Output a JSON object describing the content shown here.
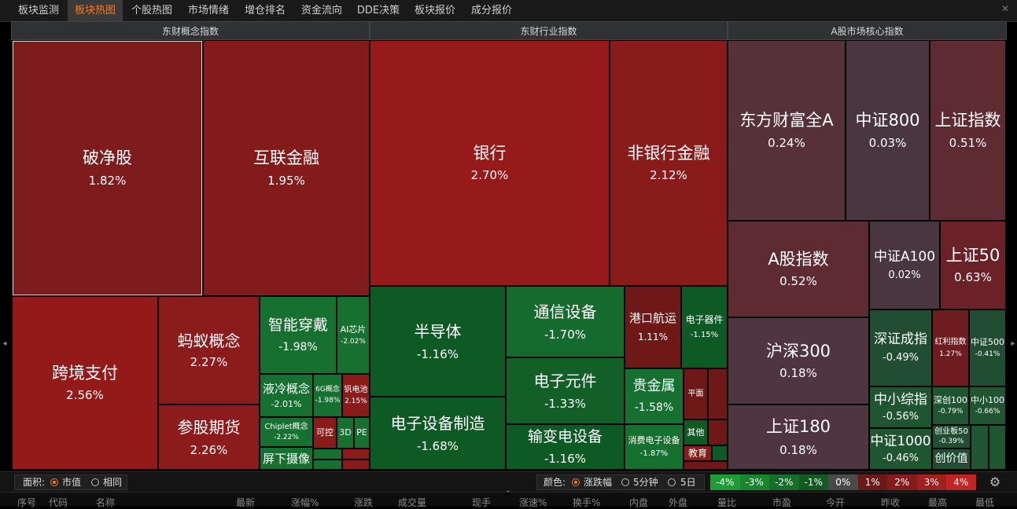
{
  "tabs": [
    "板块监测",
    "板块热图",
    "个股热图",
    "市场情绪",
    "增仓排名",
    "资金流向",
    "DDE决策",
    "板块报价",
    "成分报价"
  ],
  "active_tab": 1,
  "sections": {
    "concept": "东财概念指数",
    "industry": "东财行业指数",
    "core": "A股市场核心指数"
  },
  "colors": {
    "up_strong": "#8a1c1c",
    "down_strong": "#0c5a25",
    "neutral": "#4a3440",
    "accent": "#ff7a1a"
  },
  "cells": [
    {
      "name": "破净股",
      "pct": "1.82%"
    },
    {
      "name": "互联金融",
      "pct": "1.95%"
    },
    {
      "name": "跨境支付",
      "pct": "2.56%"
    },
    {
      "name": "蚂蚁概念",
      "pct": "2.27%"
    },
    {
      "name": "参股期货",
      "pct": "2.26%"
    },
    {
      "name": "智能穿戴",
      "pct": "-1.98%"
    },
    {
      "name": "AI芯片",
      "pct": "-2.02%"
    },
    {
      "name": "液冷概念",
      "pct": "-2.01%"
    },
    {
      "name": "6G概念",
      "pct": "-1.98%"
    },
    {
      "name": "钒电池",
      "pct": "2.15%"
    },
    {
      "name": "Chiplet概念",
      "pct": "-2.22%"
    },
    {
      "name": "可控",
      "pct": ""
    },
    {
      "name": "3D",
      "pct": ""
    },
    {
      "name": "PE",
      "pct": ""
    },
    {
      "name": "屏下摄像",
      "pct": ""
    },
    {
      "name": "银行",
      "pct": "2.70%"
    },
    {
      "name": "非银行金融",
      "pct": "2.12%"
    },
    {
      "name": "半导体",
      "pct": "-1.16%"
    },
    {
      "name": "通信设备",
      "pct": "-1.70%"
    },
    {
      "name": "港口航运",
      "pct": "1.11%"
    },
    {
      "name": "电子器件",
      "pct": "-1.15%"
    },
    {
      "name": "电子元件",
      "pct": "-1.33%"
    },
    {
      "name": "贵金属",
      "pct": "-1.58%"
    },
    {
      "name": "平面",
      "pct": ""
    },
    {
      "name": "电子设备制造",
      "pct": "-1.68%"
    },
    {
      "name": "输变电设备",
      "pct": "-1.16%"
    },
    {
      "name": "消费电子设备",
      "pct": "-1.87%"
    },
    {
      "name": "其他",
      "pct": ""
    },
    {
      "name": "教育",
      "pct": ""
    },
    {
      "name": "东方财富全A",
      "pct": "0.24%"
    },
    {
      "name": "中证800",
      "pct": "0.03%"
    },
    {
      "name": "上证指数",
      "pct": "0.51%"
    },
    {
      "name": "A股指数",
      "pct": "0.52%"
    },
    {
      "name": "中证A100",
      "pct": "0.02%"
    },
    {
      "name": "上证50",
      "pct": "0.63%"
    },
    {
      "name": "沪深300",
      "pct": "0.18%"
    },
    {
      "name": "深证成指",
      "pct": "-0.49%"
    },
    {
      "name": "红利指数",
      "pct": "1.27%"
    },
    {
      "name": "中证500",
      "pct": "-0.41%"
    },
    {
      "name": "上证180",
      "pct": "0.18%"
    },
    {
      "name": "中小综指",
      "pct": "-0.56%"
    },
    {
      "name": "深创100",
      "pct": "-0.79%"
    },
    {
      "name": "中小100",
      "pct": "-0.66%"
    },
    {
      "name": "中证1000",
      "pct": "-0.46%"
    },
    {
      "name": "创业板50",
      "pct": "-0.39%"
    },
    {
      "name": "创价值",
      "pct": ""
    }
  ],
  "bottom": {
    "area_label": "面积:",
    "area_options": [
      "市值",
      "相同"
    ],
    "area_selected": 0,
    "color_label": "颜色:",
    "color_options": [
      "涨跌幅",
      "5分钟",
      "5日"
    ],
    "color_selected": 0,
    "legend": [
      {
        "label": "-4%",
        "color": "#1e9a37"
      },
      {
        "label": "-3%",
        "color": "#1a852f"
      },
      {
        "label": "-2%",
        "color": "#166f28"
      },
      {
        "label": "-1%",
        "color": "#125a21"
      },
      {
        "label": "0%",
        "color": "#4a4a4a"
      },
      {
        "label": "1%",
        "color": "#6b1818"
      },
      {
        "label": "2%",
        "color": "#851c1c"
      },
      {
        "label": "3%",
        "color": "#a01f1f"
      },
      {
        "label": "4%",
        "color": "#c22424"
      }
    ]
  },
  "columns": [
    "序号",
    "代码",
    "名称",
    "最新",
    "涨幅%",
    "涨跌",
    "成交量",
    "现手",
    "涨速%",
    "换手%",
    "内盘",
    "外盘",
    "量比",
    "市盈",
    "今开",
    "昨收",
    "最高",
    "最低"
  ]
}
